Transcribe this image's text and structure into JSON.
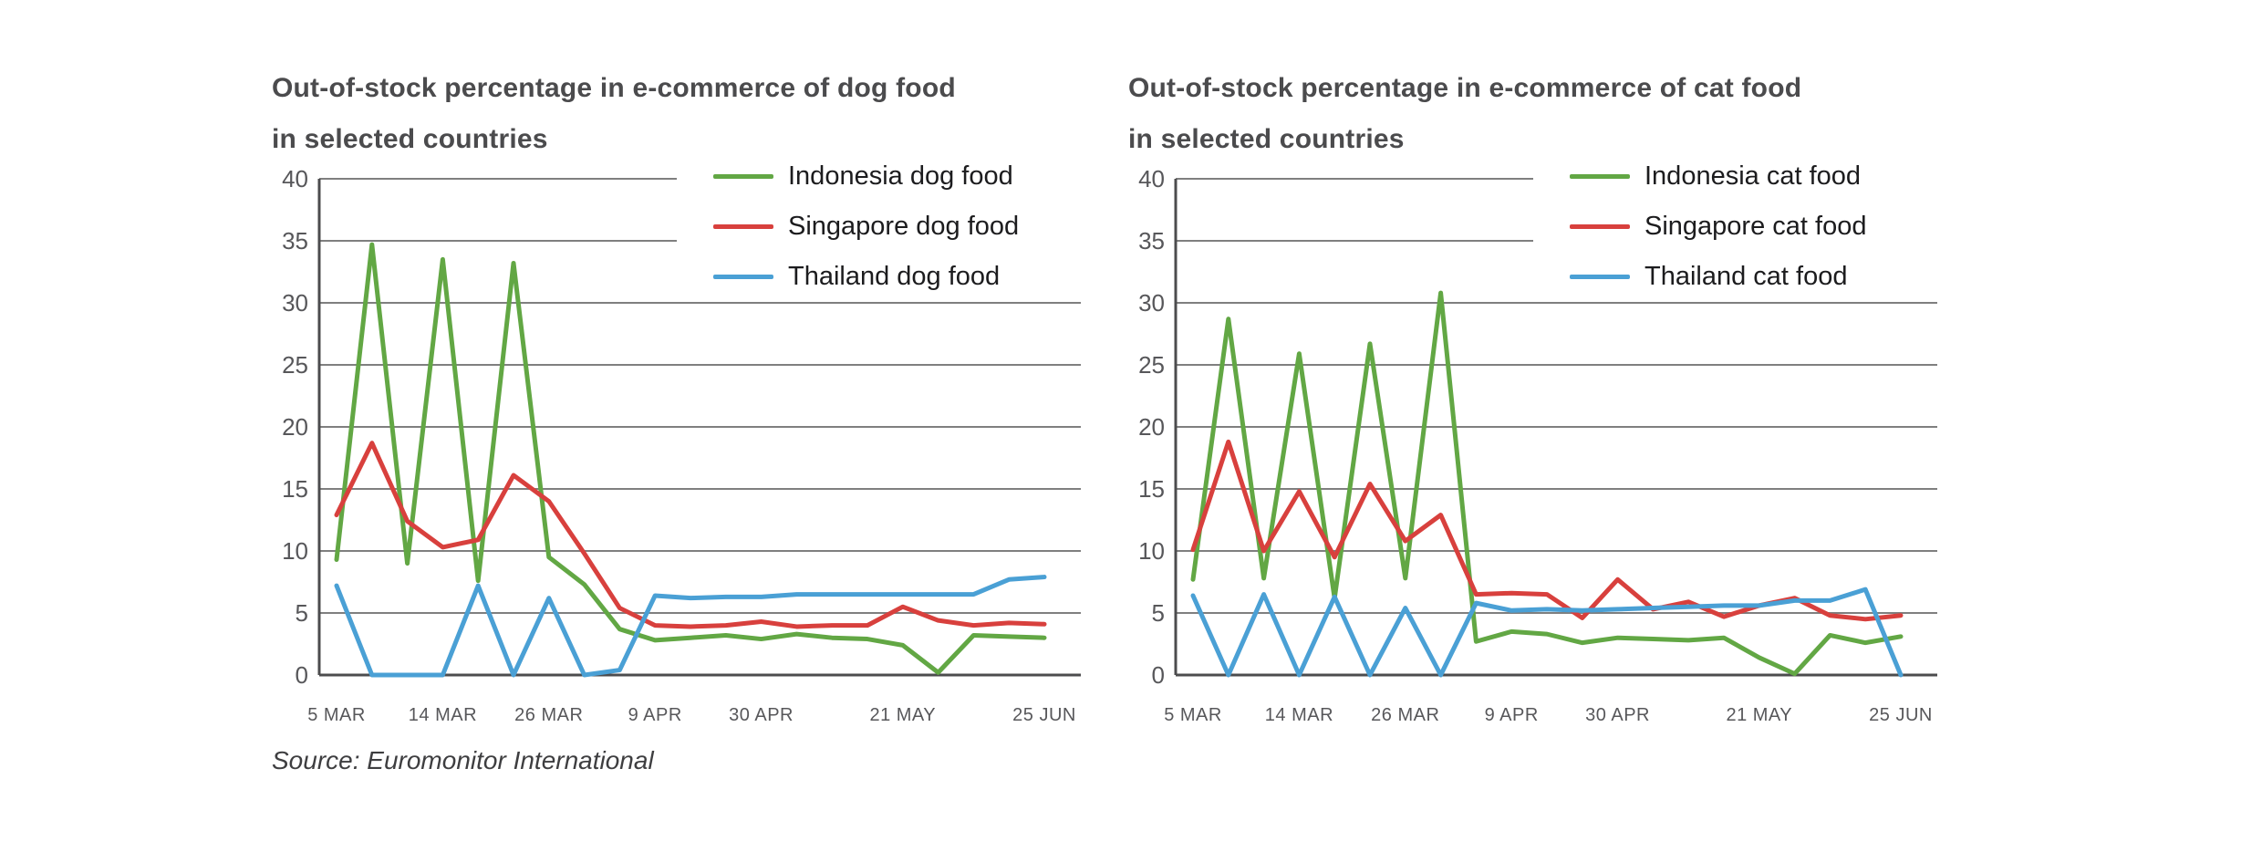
{
  "source": "Source: Euromonitor International",
  "colors": {
    "gridline": "#7f7f7f",
    "axis": "#4c4c4e",
    "tick_text": "#57575a",
    "title_text": "#4b4b4d",
    "background": "#ffffff",
    "indonesia_green": "#62a744",
    "singapore_red": "#d8403d",
    "thailand_blue": "#4aa0d5"
  },
  "chart_data": [
    {
      "type": "line",
      "title": "Out-of-stock percentage in e-commerce of dog food in selected countries",
      "title_lines": [
        "Out-of-stock percentage in e-commerce of dog food",
        "in selected countries"
      ],
      "xlabel": "",
      "ylabel": "",
      "ylim": [
        0,
        40
      ],
      "y_ticks": [
        0,
        5,
        10,
        15,
        20,
        25,
        30,
        35,
        40
      ],
      "grid": true,
      "legend_position": "top-right",
      "n_points": 21,
      "x_ticks": [
        {
          "i": 0,
          "label": "5 MAR"
        },
        {
          "i": 3,
          "label": "14 MAR"
        },
        {
          "i": 6,
          "label": "26 MAR"
        },
        {
          "i": 9,
          "label": "9 APR"
        },
        {
          "i": 12,
          "label": "30 APR"
        },
        {
          "i": 16,
          "label": "21 MAY"
        },
        {
          "i": 20,
          "label": "25 JUN"
        }
      ],
      "series": [
        {
          "name": "Indonesia dog food",
          "color": "#62a744",
          "values": [
            9.3,
            34.7,
            9.0,
            33.5,
            7.6,
            33.2,
            9.5,
            7.3,
            3.7,
            2.8,
            3.0,
            3.2,
            2.9,
            3.3,
            3.0,
            2.9,
            2.4,
            0.2,
            3.2,
            3.1,
            3.0
          ]
        },
        {
          "name": "Singapore dog food",
          "color": "#d8403d",
          "values": [
            12.9,
            18.7,
            12.4,
            10.3,
            10.9,
            16.1,
            14.0,
            9.8,
            5.4,
            4.0,
            3.9,
            4.0,
            4.3,
            3.9,
            4.0,
            4.0,
            5.5,
            4.4,
            4.0,
            4.2,
            4.1
          ]
        },
        {
          "name": "Thailand dog food",
          "color": "#4aa0d5",
          "values": [
            7.2,
            0,
            0,
            0,
            7.2,
            0,
            6.2,
            0,
            0.4,
            6.4,
            6.2,
            6.3,
            6.3,
            6.5,
            6.5,
            6.5,
            6.5,
            6.5,
            6.5,
            7.7,
            7.9
          ]
        }
      ]
    },
    {
      "type": "line",
      "title": "Out-of-stock percentage in e-commerce of cat food in selected countries",
      "title_lines": [
        "Out-of-stock percentage in e-commerce of cat food",
        "in selected countries"
      ],
      "xlabel": "",
      "ylabel": "",
      "ylim": [
        0,
        40
      ],
      "y_ticks": [
        0,
        5,
        10,
        15,
        20,
        25,
        30,
        35,
        40
      ],
      "grid": true,
      "legend_position": "top-right",
      "n_points": 21,
      "x_ticks": [
        {
          "i": 0,
          "label": "5 MAR"
        },
        {
          "i": 3,
          "label": "14 MAR"
        },
        {
          "i": 6,
          "label": "26 MAR"
        },
        {
          "i": 9,
          "label": "9 APR"
        },
        {
          "i": 12,
          "label": "30 APR"
        },
        {
          "i": 16,
          "label": "21 MAY"
        },
        {
          "i": 20,
          "label": "25 JUN"
        }
      ],
      "series": [
        {
          "name": "Indonesia cat food",
          "color": "#62a744",
          "values": [
            7.7,
            28.7,
            7.8,
            25.9,
            6.2,
            26.7,
            7.8,
            30.8,
            2.7,
            3.5,
            3.3,
            2.6,
            3.0,
            2.9,
            2.8,
            3.0,
            1.4,
            0.1,
            3.2,
            2.6,
            3.1
          ]
        },
        {
          "name": "Singapore cat food",
          "color": "#d8403d",
          "values": [
            10.1,
            18.8,
            10.0,
            14.8,
            9.5,
            15.4,
            10.8,
            12.9,
            6.5,
            6.6,
            6.5,
            4.6,
            7.7,
            5.3,
            5.9,
            4.7,
            5.6,
            6.2,
            4.8,
            4.5,
            4.8
          ]
        },
        {
          "name": "Thailand cat food",
          "color": "#4aa0d5",
          "values": [
            6.4,
            0,
            6.5,
            0,
            6.3,
            0,
            5.4,
            0,
            5.8,
            5.2,
            5.3,
            5.2,
            5.3,
            5.4,
            5.5,
            5.6,
            5.6,
            6.0,
            6.0,
            6.9,
            0
          ]
        }
      ]
    }
  ]
}
